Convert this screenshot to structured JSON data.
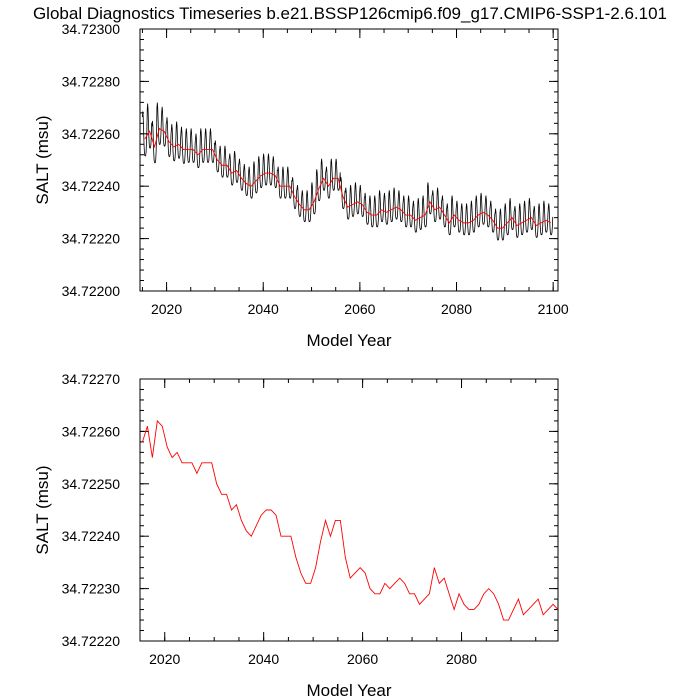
{
  "page": {
    "title": "Global Diagnostics Timeseries b.e21.BSSP126cmip6.f09_g17.CMIP6-SSP1-2.6.101"
  },
  "colors": {
    "monthly": "#000000",
    "annual": "#ff0000",
    "axis": "#000000"
  },
  "chart_data": [
    {
      "type": "line",
      "xlabel": "Model Year",
      "ylabel": "SALT (msu)",
      "xlim": [
        2014.5,
        2101
      ],
      "ylim": [
        34.722,
        34.723
      ],
      "x_ticks": [
        2020,
        2040,
        2060,
        2080,
        2100
      ],
      "x_tick_labels": [
        "2020",
        "2040",
        "2060",
        "2080",
        "2100"
      ],
      "y_ticks": [
        34.722,
        34.7222,
        34.7224,
        34.7226,
        34.7228,
        34.723
      ],
      "y_tick_labels": [
        "34.72200",
        "34.72220",
        "34.72240",
        "34.72260",
        "34.72280",
        "34.72300"
      ],
      "x_minor_step": 5,
      "y_minor_step": 4e-05,
      "series": [
        {
          "color": "#000000",
          "kind": "monthly",
          "x_start": 2015,
          "x_step": 0.08333333,
          "annual_means": [
            34.72258,
            34.72261,
            34.72255,
            34.72262,
            34.72261,
            34.72257,
            34.72255,
            34.72256,
            34.72254,
            34.72254,
            34.72254,
            34.72252,
            34.72254,
            34.72254,
            34.72254,
            34.7225,
            34.72248,
            34.72248,
            34.72245,
            34.72246,
            34.72243,
            34.72241,
            34.7224,
            34.72242,
            34.72244,
            34.72245,
            34.72245,
            34.72244,
            34.7224,
            34.7224,
            34.7224,
            34.72236,
            34.72233,
            34.72231,
            34.72231,
            34.72234,
            34.72239,
            34.72243,
            34.7224,
            34.72243,
            34.72243,
            34.72236,
            34.72232,
            34.72233,
            34.72234,
            34.72233,
            34.7223,
            34.72229,
            34.72229,
            34.72231,
            34.7223,
            34.72231,
            34.72232,
            34.72231,
            34.72229,
            34.72229,
            34.72227,
            34.72228,
            34.72229,
            34.72234,
            34.72231,
            34.72232,
            34.72229,
            34.72226,
            34.72229,
            34.72227,
            34.72226,
            34.72226,
            34.72227,
            34.72229,
            34.7223,
            34.72229,
            34.72227,
            34.72224,
            34.72224,
            34.72226,
            34.72228,
            34.72225,
            34.72226,
            34.72227,
            34.72228,
            34.72225,
            34.72226,
            34.72227,
            34.72226
          ],
          "seasonal_amplitude": [
            0.00017,
            0.00017,
            0.00016,
            0.00016,
            0.00015,
            0.00015,
            0.00014,
            0.00014,
            0.00014,
            0.00013,
            0.00013,
            0.00013,
            0.00013,
            0.00013,
            0.00013,
            0.00012,
            0.00012,
            0.00012,
            0.00012,
            0.00012,
            0.00012,
            0.00012,
            0.00012,
            0.00012,
            0.00012,
            0.00012,
            0.00012,
            0.00012,
            0.00012,
            0.00012,
            0.00012,
            0.00012,
            0.00012,
            0.00012,
            0.00012,
            0.00012,
            0.00012,
            0.00012,
            0.00012,
            0.00012,
            0.00012,
            0.00012,
            0.00012,
            0.00012,
            0.00012,
            0.00012,
            0.00012,
            0.00012,
            0.00012,
            0.00012,
            0.00012,
            0.00012,
            0.00012,
            0.00012,
            0.00012,
            0.00012,
            0.00012,
            0.00012,
            0.00012,
            0.00012,
            0.00012,
            0.00012,
            0.00012,
            0.00012,
            0.00012,
            0.00012,
            0.00012,
            0.00012,
            0.00012,
            0.00012,
            0.00012,
            0.00012,
            0.00012,
            0.00012,
            0.00012,
            0.00012,
            0.00012,
            0.00012,
            0.00012,
            0.00012,
            0.00012,
            0.00012,
            0.00012,
            0.00012,
            0.00012
          ]
        },
        {
          "color": "#ff0000",
          "kind": "annual",
          "x": [
            2015.5,
            2016.5,
            2017.5,
            2018.5,
            2019.5,
            2020.5,
            2021.5,
            2022.5,
            2023.5,
            2024.5,
            2025.5,
            2026.5,
            2027.5,
            2028.5,
            2029.5,
            2030.5,
            2031.5,
            2032.5,
            2033.5,
            2034.5,
            2035.5,
            2036.5,
            2037.5,
            2038.5,
            2039.5,
            2040.5,
            2041.5,
            2042.5,
            2043.5,
            2044.5,
            2045.5,
            2046.5,
            2047.5,
            2048.5,
            2049.5,
            2050.5,
            2051.5,
            2052.5,
            2053.5,
            2054.5,
            2055.5,
            2056.5,
            2057.5,
            2058.5,
            2059.5,
            2060.5,
            2061.5,
            2062.5,
            2063.5,
            2064.5,
            2065.5,
            2066.5,
            2067.5,
            2068.5,
            2069.5,
            2070.5,
            2071.5,
            2072.5,
            2073.5,
            2074.5,
            2075.5,
            2076.5,
            2077.5,
            2078.5,
            2079.5,
            2080.5,
            2081.5,
            2082.5,
            2083.5,
            2084.5,
            2085.5,
            2086.5,
            2087.5,
            2088.5,
            2089.5,
            2090.5,
            2091.5,
            2092.5,
            2093.5,
            2094.5,
            2095.5,
            2096.5,
            2097.5,
            2098.5,
            2099.5
          ],
          "y": [
            34.72258,
            34.72261,
            34.72255,
            34.72262,
            34.72261,
            34.72257,
            34.72255,
            34.72256,
            34.72254,
            34.72254,
            34.72254,
            34.72252,
            34.72254,
            34.72254,
            34.72254,
            34.7225,
            34.72248,
            34.72248,
            34.72245,
            34.72246,
            34.72243,
            34.72241,
            34.7224,
            34.72242,
            34.72244,
            34.72245,
            34.72245,
            34.72244,
            34.7224,
            34.7224,
            34.7224,
            34.72236,
            34.72233,
            34.72231,
            34.72231,
            34.72234,
            34.72239,
            34.72243,
            34.7224,
            34.72243,
            34.72243,
            34.72236,
            34.72232,
            34.72233,
            34.72234,
            34.72233,
            34.7223,
            34.72229,
            34.72229,
            34.72231,
            34.7223,
            34.72231,
            34.72232,
            34.72231,
            34.72229,
            34.72229,
            34.72227,
            34.72228,
            34.72229,
            34.72234,
            34.72231,
            34.72232,
            34.72229,
            34.72226,
            34.72229,
            34.72227,
            34.72226,
            34.72226,
            34.72227,
            34.72229,
            34.7223,
            34.72229,
            34.72227,
            34.72224,
            34.72224,
            34.72226,
            34.72228,
            34.72225,
            34.72226,
            34.72227,
            34.72228,
            34.72225,
            34.72226,
            34.72227,
            34.72226
          ]
        }
      ]
    },
    {
      "type": "line",
      "xlabel": "Model Year",
      "ylabel": "SALT (msu)",
      "xlim": [
        2015,
        2099.5
      ],
      "ylim": [
        34.7222,
        34.7227
      ],
      "x_ticks": [
        2020,
        2040,
        2060,
        2080
      ],
      "x_tick_labels": [
        "2020",
        "2040",
        "2060",
        "2080"
      ],
      "y_ticks": [
        34.7222,
        34.7223,
        34.7224,
        34.7225,
        34.7226,
        34.7227
      ],
      "y_tick_labels": [
        "34.72220",
        "34.72230",
        "34.72240",
        "34.72250",
        "34.72260",
        "34.72270"
      ],
      "x_minor_step": 5,
      "y_minor_step": 2e-05,
      "series": [
        {
          "color": "#ff0000",
          "kind": "annual",
          "x": [
            2015.5,
            2016.5,
            2017.5,
            2018.5,
            2019.5,
            2020.5,
            2021.5,
            2022.5,
            2023.5,
            2024.5,
            2025.5,
            2026.5,
            2027.5,
            2028.5,
            2029.5,
            2030.5,
            2031.5,
            2032.5,
            2033.5,
            2034.5,
            2035.5,
            2036.5,
            2037.5,
            2038.5,
            2039.5,
            2040.5,
            2041.5,
            2042.5,
            2043.5,
            2044.5,
            2045.5,
            2046.5,
            2047.5,
            2048.5,
            2049.5,
            2050.5,
            2051.5,
            2052.5,
            2053.5,
            2054.5,
            2055.5,
            2056.5,
            2057.5,
            2058.5,
            2059.5,
            2060.5,
            2061.5,
            2062.5,
            2063.5,
            2064.5,
            2065.5,
            2066.5,
            2067.5,
            2068.5,
            2069.5,
            2070.5,
            2071.5,
            2072.5,
            2073.5,
            2074.5,
            2075.5,
            2076.5,
            2077.5,
            2078.5,
            2079.5,
            2080.5,
            2081.5,
            2082.5,
            2083.5,
            2084.5,
            2085.5,
            2086.5,
            2087.5,
            2088.5,
            2089.5,
            2090.5,
            2091.5,
            2092.5,
            2093.5,
            2094.5,
            2095.5,
            2096.5,
            2097.5,
            2098.5,
            2099.5
          ],
          "y": [
            34.72258,
            34.72261,
            34.72255,
            34.72262,
            34.72261,
            34.72257,
            34.72255,
            34.72256,
            34.72254,
            34.72254,
            34.72254,
            34.72252,
            34.72254,
            34.72254,
            34.72254,
            34.7225,
            34.72248,
            34.72248,
            34.72245,
            34.72246,
            34.72243,
            34.72241,
            34.7224,
            34.72242,
            34.72244,
            34.72245,
            34.72245,
            34.72244,
            34.7224,
            34.7224,
            34.7224,
            34.72236,
            34.72233,
            34.72231,
            34.72231,
            34.72234,
            34.72239,
            34.72243,
            34.7224,
            34.72243,
            34.72243,
            34.72236,
            34.72232,
            34.72233,
            34.72234,
            34.72233,
            34.7223,
            34.72229,
            34.72229,
            34.72231,
            34.7223,
            34.72231,
            34.72232,
            34.72231,
            34.72229,
            34.72229,
            34.72227,
            34.72228,
            34.72229,
            34.72234,
            34.72231,
            34.72232,
            34.72229,
            34.72226,
            34.72229,
            34.72227,
            34.72226,
            34.72226,
            34.72227,
            34.72229,
            34.7223,
            34.72229,
            34.72227,
            34.72224,
            34.72224,
            34.72226,
            34.72228,
            34.72225,
            34.72226,
            34.72227,
            34.72228,
            34.72225,
            34.72226,
            34.72227,
            34.72226
          ]
        }
      ]
    }
  ]
}
